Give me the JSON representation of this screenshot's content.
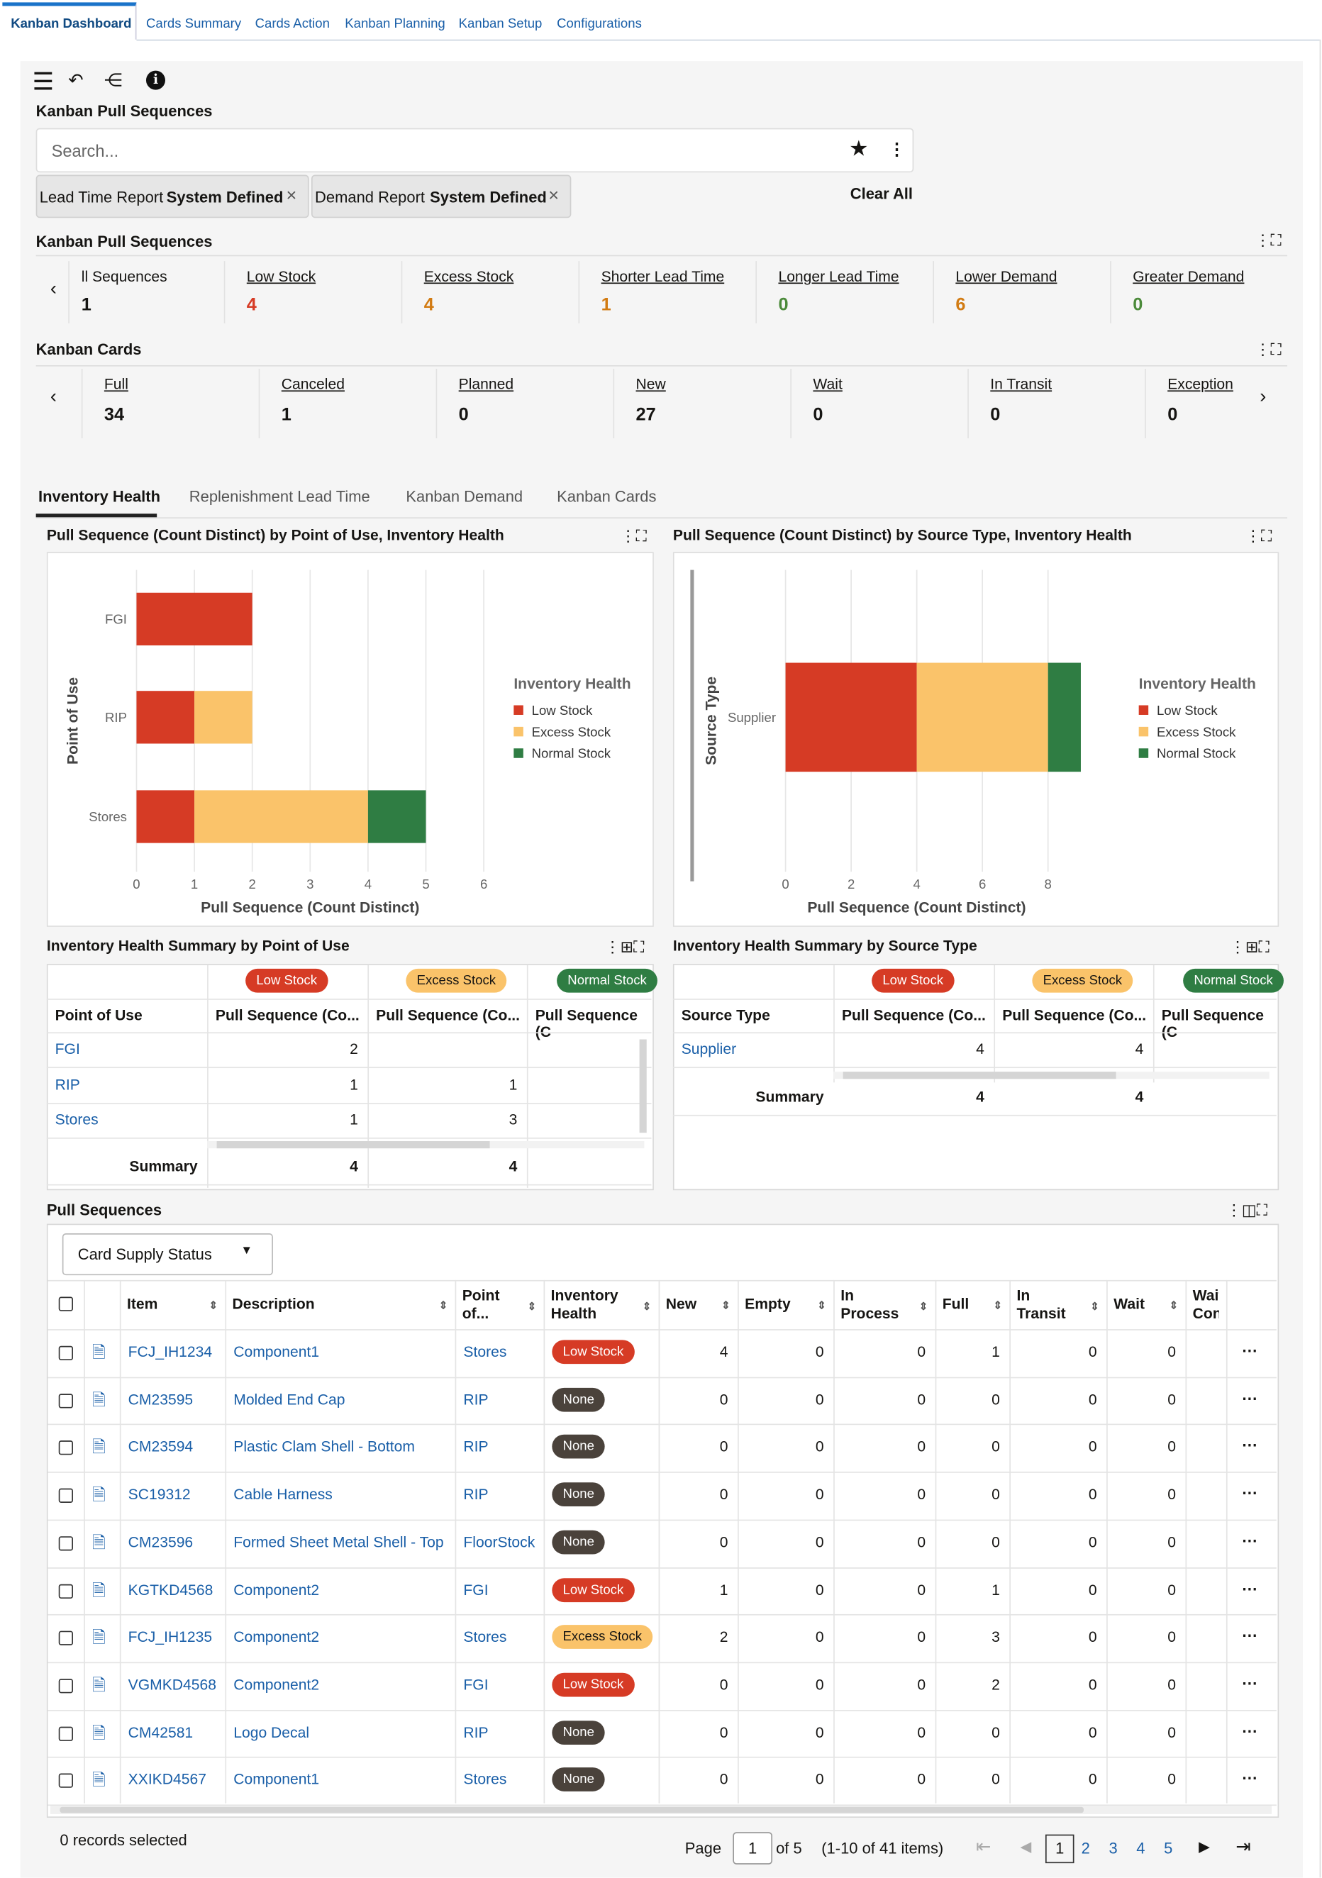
{
  "nav_tabs": [
    "Kanban Dashboard",
    "Cards Summary",
    "Cards Action",
    "Kanban Planning",
    "Kanban Setup",
    "Configurations"
  ],
  "page_title": "Kanban Pull Sequences",
  "search": {
    "placeholder": "Search..."
  },
  "filters": [
    {
      "label": "Lead Time Report",
      "value": "System Defined"
    },
    {
      "label": "Demand Report",
      "value": "System Defined"
    }
  ],
  "clear_all": "Clear All",
  "pull_seq_section": {
    "title": "Kanban Pull Sequences",
    "metrics": [
      {
        "label": "ll Sequences",
        "value": "1",
        "color": "#161513"
      },
      {
        "label": "Low Stock",
        "value": "4",
        "color": "#d63b25"
      },
      {
        "label": "Excess Stock",
        "value": "4",
        "color": "#d27b12"
      },
      {
        "label": "Shorter Lead Time",
        "value": "1",
        "color": "#d27b12"
      },
      {
        "label": "Longer Lead Time",
        "value": "0",
        "color": "#4b8a3a"
      },
      {
        "label": "Lower Demand",
        "value": "6",
        "color": "#d27b12"
      },
      {
        "label": "Greater Demand",
        "value": "0",
        "color": "#4b8a3a"
      }
    ]
  },
  "cards_section": {
    "title": "Kanban Cards",
    "metrics": [
      {
        "label": "Full",
        "value": "34"
      },
      {
        "label": "Canceled",
        "value": "1"
      },
      {
        "label": "Planned",
        "value": "0"
      },
      {
        "label": "New",
        "value": "27"
      },
      {
        "label": "Wait",
        "value": "0"
      },
      {
        "label": "In Transit",
        "value": "0"
      },
      {
        "label": "Exception",
        "value": "0"
      }
    ]
  },
  "content_tabs": [
    "Inventory Health",
    "Replenishment Lead Time",
    "Kanban Demand",
    "Kanban Cards"
  ],
  "colors": {
    "low": "#d63b25",
    "excess": "#fac36a",
    "normal": "#2f7d43"
  },
  "chart_data": [
    {
      "type": "bar",
      "orientation": "horizontal",
      "stacked": true,
      "title": "Pull Sequence (Count Distinct) by Point of Use, Inventory Health",
      "xlabel": "Pull Sequence (Count Distinct)",
      "ylabel": "Point of Use",
      "categories": [
        "FGI",
        "RIP",
        "Stores"
      ],
      "series": [
        {
          "name": "Low Stock",
          "values": [
            2,
            1,
            1
          ]
        },
        {
          "name": "Excess Stock",
          "values": [
            0,
            1,
            3
          ]
        },
        {
          "name": "Normal Stock",
          "values": [
            0,
            0,
            1
          ]
        }
      ],
      "xlim": [
        0,
        6
      ],
      "xticks": [
        0,
        1,
        2,
        3,
        4,
        5,
        6
      ],
      "legend_title": "Inventory Health",
      "legend": "right"
    },
    {
      "type": "bar",
      "orientation": "horizontal",
      "stacked": true,
      "title": "Pull Sequence (Count Distinct) by Source Type, Inventory Health",
      "xlabel": "Pull Sequence (Count Distinct)",
      "ylabel": "Source Type",
      "categories": [
        "Supplier"
      ],
      "series": [
        {
          "name": "Low Stock",
          "values": [
            4
          ]
        },
        {
          "name": "Excess Stock",
          "values": [
            4
          ]
        },
        {
          "name": "Normal Stock",
          "values": [
            1
          ]
        }
      ],
      "xlim": [
        0,
        9
      ],
      "xticks": [
        0,
        2,
        4,
        6,
        8
      ],
      "legend_title": "Inventory Health",
      "legend": "right"
    }
  ],
  "summary_pou": {
    "title": "Inventory Health Summary by Point of Use",
    "badges": [
      "Low Stock",
      "Excess Stock",
      "Normal Stock"
    ],
    "headers": [
      "Point of Use",
      "Pull Sequence (Co...",
      "Pull Sequence (Co...",
      "Pull Sequence (C"
    ],
    "rows": [
      [
        "FGI",
        "2",
        ""
      ],
      [
        "RIP",
        "1",
        "1"
      ],
      [
        "Stores",
        "1",
        "3"
      ]
    ],
    "summary": [
      "Summary",
      "4",
      "4"
    ]
  },
  "summary_src": {
    "title": "Inventory Health Summary by Source Type",
    "badges": [
      "Low Stock",
      "Excess Stock",
      "Normal Stock"
    ],
    "headers": [
      "Source Type",
      "Pull Sequence (Co...",
      "Pull Sequence (Co...",
      "Pull Sequence (C"
    ],
    "rows": [
      [
        "Supplier",
        "4",
        "4"
      ]
    ],
    "summary": [
      "Summary",
      "4",
      "4"
    ]
  },
  "pull_sequences": {
    "title": "Pull Sequences",
    "dropdown": "Card Supply Status",
    "headers": [
      "Item",
      "Description",
      "Point of...",
      "Inventory Health",
      "New",
      "Empty",
      "In Process",
      "Full",
      "In Transit",
      "Wait",
      "Wait Cons"
    ],
    "rows": [
      [
        "FCJ_IH1234",
        "Component1",
        "Stores",
        "Low Stock",
        "4",
        "0",
        "0",
        "1",
        "0",
        "0"
      ],
      [
        "CM23595",
        "Molded End Cap",
        "RIP",
        "None",
        "0",
        "0",
        "0",
        "0",
        "0",
        "0"
      ],
      [
        "CM23594",
        "Plastic Clam Shell - Bottom",
        "RIP",
        "None",
        "0",
        "0",
        "0",
        "0",
        "0",
        "0"
      ],
      [
        "SC19312",
        "Cable Harness",
        "RIP",
        "None",
        "0",
        "0",
        "0",
        "0",
        "0",
        "0"
      ],
      [
        "CM23596",
        "Formed Sheet Metal Shell - Top",
        "FloorStock",
        "None",
        "0",
        "0",
        "0",
        "0",
        "0",
        "0"
      ],
      [
        "KGTKD4568",
        "Component2",
        "FGI",
        "Low Stock",
        "1",
        "0",
        "0",
        "1",
        "0",
        "0"
      ],
      [
        "FCJ_IH1235",
        "Component2",
        "Stores",
        "Excess Stock",
        "2",
        "0",
        "0",
        "3",
        "0",
        "0"
      ],
      [
        "VGMKD4568",
        "Component2",
        "FGI",
        "Low Stock",
        "0",
        "0",
        "0",
        "2",
        "0",
        "0"
      ],
      [
        "CM42581",
        "Logo Decal",
        "RIP",
        "None",
        "0",
        "0",
        "0",
        "0",
        "0",
        "0"
      ],
      [
        "XXIKD4567",
        "Component1",
        "Stores",
        "None",
        "0",
        "0",
        "0",
        "0",
        "0",
        "0"
      ]
    ],
    "selected": "0 records selected",
    "pager": {
      "page_label": "Page",
      "page": "1",
      "of": "of 5",
      "range": "(1-10 of 41 items)",
      "pages": [
        "1",
        "2",
        "3",
        "4",
        "5"
      ]
    }
  }
}
